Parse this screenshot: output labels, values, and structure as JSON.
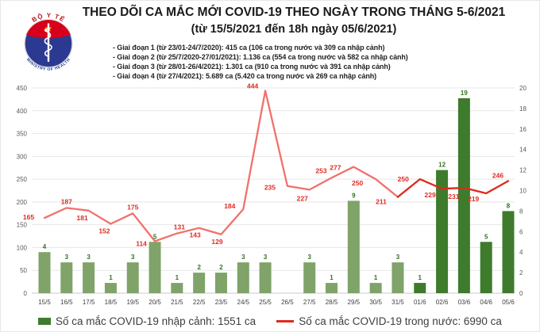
{
  "header": {
    "logo": {
      "top_text": "BỘ Y TẾ",
      "bottom_text": "MINISTRY OF HEALTH"
    },
    "title": "THEO DÕI CA MẮC MỚI COVID-19 THEO NGÀY TRONG THÁNG 5-6/2021",
    "subtitle": "(từ 15/5/2021 đến 18h ngày 05/6/2021)",
    "bullets": [
      "- Giai đoạn 1 (từ 23/01-24/7/2020): 415 ca (106 ca trong nước và 309 ca nhập cảnh)",
      "- Giai đoạn 2 (từ 25/7/2020-27/01/2021): 1.136 ca (554 ca trong nước và 582 ca nhập cảnh)",
      "- Giai đoạn 3 (từ 28/01-26/4/2021): 1.301 ca (910 ca trong nước và 391 ca nhập cảnh)",
      "- Giai đoạn 4 (từ 27/4/2021): 5.689 ca (5.420 ca trong nước và 269 ca nhập cảnh)"
    ]
  },
  "chart_data": {
    "type": "bar+line",
    "categories": [
      "15/5",
      "16/5",
      "17/5",
      "18/5",
      "19/5",
      "20/5",
      "21/5",
      "22/5",
      "23/5",
      "24/5",
      "25/5",
      "26/5",
      "27/5",
      "28/5",
      "29/5",
      "30/5",
      "31/5",
      "01/6",
      "02/6",
      "03/6",
      "04/6",
      "05/6"
    ],
    "series": [
      {
        "name": "Số ca mắc COVID-19 nhập cảnh",
        "type": "bar",
        "axis": "right",
        "values": [
          4,
          3,
          3,
          1,
          3,
          5,
          1,
          2,
          2,
          3,
          3,
          0,
          3,
          1,
          9,
          1,
          3,
          1,
          12,
          19,
          5,
          8
        ],
        "color_may": "#7FA368",
        "color_june": "#3F7B2D",
        "label_color": "#2E7320"
      },
      {
        "name": "Số ca mắc COVID-19 trong nước",
        "type": "line",
        "axis": "left",
        "values": [
          165,
          187,
          181,
          152,
          175,
          114,
          131,
          143,
          129,
          184,
          444,
          235,
          227,
          253,
          277,
          250,
          211,
          250,
          229,
          231,
          219,
          246
        ],
        "color_may": "#F0716C",
        "color_june": "#DD2A1C",
        "label_color": "#E02B20"
      }
    ],
    "color_split_index": 17,
    "left_axis": {
      "min": 0,
      "max": 450,
      "step": 50
    },
    "right_axis": {
      "min": 0,
      "max": 20,
      "step": 2
    },
    "grid": true,
    "legend_position": "bottom",
    "legend": {
      "bar_label": "Số ca mắc COVID-19 nhập cảnh: 1551 ca",
      "line_label": "Số ca mắc COVID-19 trong nước: 6990 ca"
    }
  }
}
